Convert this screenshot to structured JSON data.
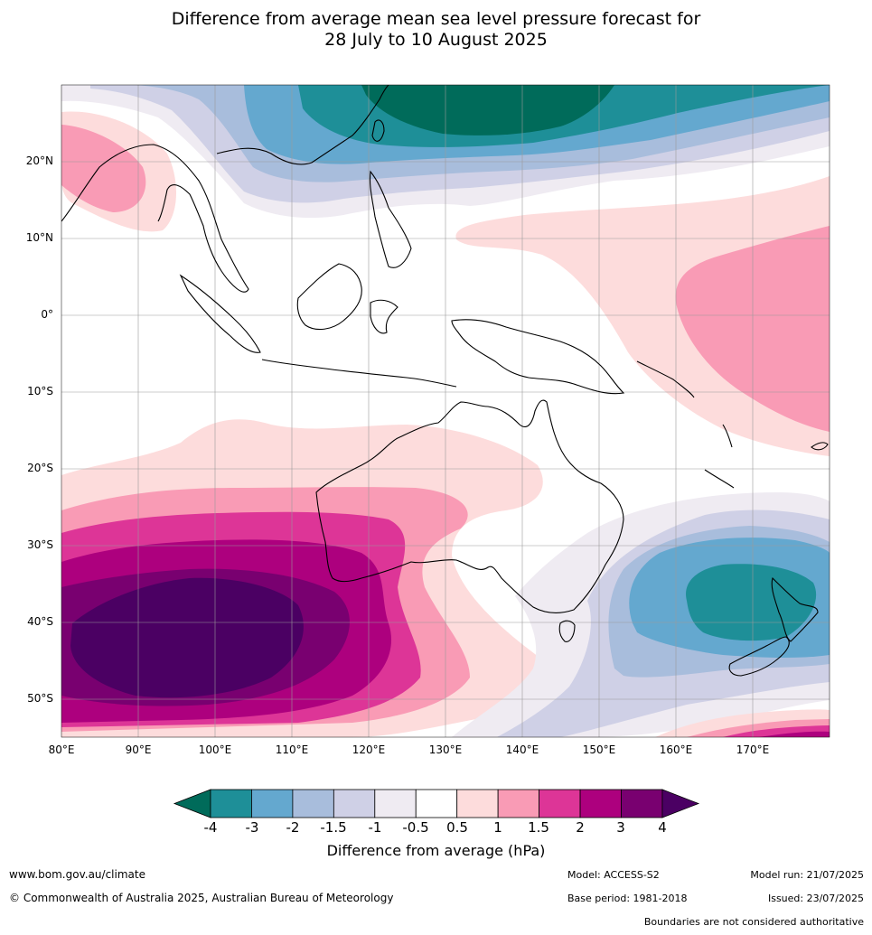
{
  "title": {
    "line1": "Difference from average mean sea level pressure forecast for",
    "line2": "28 July to 10 August 2025"
  },
  "map": {
    "lat_labels": [
      "20°N",
      "10°N",
      "0°",
      "10°S",
      "20°S",
      "30°S",
      "40°S",
      "50°S"
    ],
    "lon_labels": [
      "80°E",
      "90°E",
      "100°E",
      "110°E",
      "120°E",
      "130°E",
      "140°E",
      "150°E",
      "160°E",
      "170°E"
    ],
    "region": "Indo-Pacific / Australia",
    "features": [
      "positive-anomaly-southern-indian-ocean",
      "negative-anomaly-tasman-new-zealand",
      "negative-anomaly-northwest-pacific",
      "positive-anomaly-southwest-pacific"
    ]
  },
  "colorbar": {
    "tick_labels": [
      "-4",
      "-3",
      "-2",
      "-1.5",
      "-1",
      "-0.5",
      "0.5",
      "1",
      "1.5",
      "2",
      "3",
      "4"
    ],
    "colors": [
      "#006b5a",
      "#1e8f98",
      "#64a8cf",
      "#a8bddc",
      "#cfd0e6",
      "#efebf2",
      "#ffffff",
      "#fddcdc",
      "#f99bb5",
      "#dd3597",
      "#ad007e",
      "#790070",
      "#4b0063"
    ],
    "title": "Difference from average (hPa)"
  },
  "footer": {
    "website": "www.bom.gov.au/climate",
    "copyright": "© Commonwealth of Australia 2025, Australian Bureau of Meteorology",
    "model": "Model: ACCESS-S2",
    "base_period": "Base period: 1981-2018",
    "model_run": "Model run: 21/07/2025",
    "issued": "Issued: 23/07/2025",
    "disclaimer": "Boundaries are not considered authoritative"
  }
}
